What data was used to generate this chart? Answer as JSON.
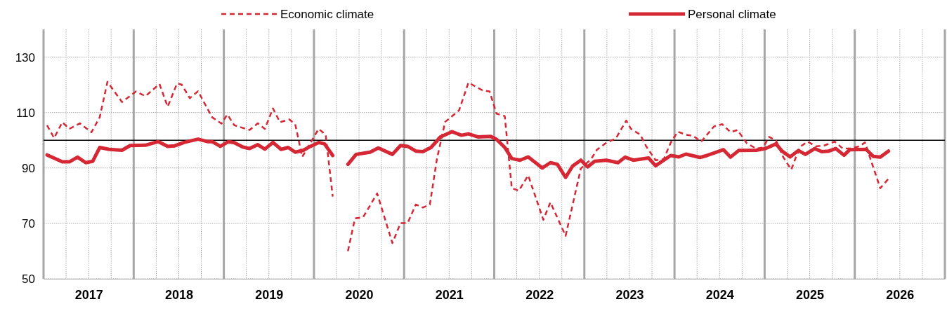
{
  "chart_data": {
    "type": "line",
    "legend": "top",
    "grid": true,
    "marker": "none",
    "xlim": [
      2017,
      2027
    ],
    "ylim": [
      50,
      140
    ],
    "yticks": [
      50,
      70,
      90,
      110,
      130
    ],
    "xticks": [
      {
        "value": 2017,
        "label": null
      },
      {
        "value": 2017.25,
        "label": null
      },
      {
        "value": 2017.5,
        "label": "2017"
      },
      {
        "value": 2017.75,
        "label": null
      },
      {
        "value": 2018,
        "label": null
      },
      {
        "value": 2018.25,
        "label": null
      },
      {
        "value": 2018.5,
        "label": "2018"
      },
      {
        "value": 2018.75,
        "label": null
      },
      {
        "value": 2019,
        "label": null
      },
      {
        "value": 2019.25,
        "label": null
      },
      {
        "value": 2019.5,
        "label": "2019"
      },
      {
        "value": 2019.75,
        "label": null
      },
      {
        "value": 2020,
        "label": null
      },
      {
        "value": 2020.25,
        "label": null
      },
      {
        "value": 2020.5,
        "label": "2020"
      },
      {
        "value": 2020.75,
        "label": null
      },
      {
        "value": 2021,
        "label": null
      },
      {
        "value": 2021.25,
        "label": null
      },
      {
        "value": 2021.5,
        "label": "2021"
      },
      {
        "value": 2021.75,
        "label": null
      },
      {
        "value": 2022,
        "label": null
      },
      {
        "value": 2022.25,
        "label": null
      },
      {
        "value": 2022.5,
        "label": "2022"
      },
      {
        "value": 2022.75,
        "label": null
      },
      {
        "value": 2023,
        "label": null
      },
      {
        "value": 2023.25,
        "label": null
      },
      {
        "value": 2023.5,
        "label": "2023"
      },
      {
        "value": 2023.75,
        "label": null
      },
      {
        "value": 2024,
        "label": null
      },
      {
        "value": 2024.25,
        "label": null
      },
      {
        "value": 2024.5,
        "label": "2024"
      },
      {
        "value": 2024.75,
        "label": null
      },
      {
        "value": 2025,
        "label": null
      },
      {
        "value": 2025.25,
        "label": null
      },
      {
        "value": 2025.5,
        "label": "2025"
      },
      {
        "value": 2025.75,
        "label": null
      },
      {
        "value": 2026,
        "label": null
      },
      {
        "value": 2026.25,
        "label": null
      },
      {
        "value": 2026.5,
        "label": "2026"
      },
      {
        "value": 2026.75,
        "label": null
      },
      {
        "value": 2027,
        "label": null
      }
    ],
    "ref_lines": [
      {
        "axis": "y",
        "value": 100,
        "color": "#000000",
        "line_style": "solid"
      }
    ],
    "series": [
      {
        "name": "Economic climate",
        "color": "#d62734",
        "line_style": "dashed",
        "x": [
          2017.039,
          2017.117,
          2017.208,
          2017.286,
          2017.403,
          2017.532,
          2017.623,
          2017.709,
          2017.87,
          2018.026,
          2018.13,
          2018.286,
          2018.377,
          2018.481,
          2018.532,
          2018.623,
          2018.714,
          2018.87,
          2018.974,
          2019.039,
          2019.117,
          2019.286,
          2019.377,
          2019.455,
          2019.545,
          2019.623,
          2019.727,
          2019.792,
          2019.87,
          2019.961,
          2020.052,
          2020.13,
          2020.208,
          2020.29,
          2020.377,
          2020.455,
          2020.545,
          2020.701,
          2020.87,
          2020.961,
          2021.039,
          2021.13,
          2021.208,
          2021.286,
          2021.364,
          2021.455,
          2021.61,
          2021.714,
          2021.87,
          2021.948,
          2022.026,
          2022.117,
          2022.195,
          2022.273,
          2022.377,
          2022.545,
          2022.623,
          2022.792,
          2022.961,
          2023.075,
          2023.14,
          2023.244,
          2023.348,
          2023.465,
          2023.517,
          2023.621,
          2023.686,
          2023.79,
          2023.881,
          2023.958,
          2024.036,
          2024.127,
          2024.205,
          2024.296,
          2024.439,
          2024.53,
          2024.621,
          2024.699,
          2024.803,
          2024.906,
          2024.984,
          2025.049,
          2025.127,
          2025.205,
          2025.296,
          2025.348,
          2025.4,
          2025.478,
          2025.569,
          2025.66,
          2025.777,
          2025.868,
          2025.945,
          2026.049,
          2026.114,
          2026.179,
          2026.283,
          2026.374
        ],
        "values": [
          105.4,
          100.8,
          106.5,
          104.1,
          106.1,
          102.9,
          108.3,
          121.1,
          113.8,
          117.6,
          115.9,
          120.3,
          112.1,
          120.5,
          120.1,
          115.2,
          117.7,
          108.3,
          106.0,
          109.3,
          105.4,
          103.7,
          106.1,
          104.1,
          111.5,
          106.5,
          107.5,
          105.8,
          94.0,
          99.1,
          104.1,
          102.0,
          79.7,
          null,
          60.0,
          71.8,
          72.2,
          80.8,
          62.9,
          70.1,
          70.1,
          76.8,
          75.7,
          76.8,
          93.2,
          106.6,
          110.8,
          120.8,
          118.0,
          117.6,
          109.6,
          108.7,
          82.7,
          81.8,
          87.3,
          71.3,
          77.6,
          65.5,
          89.8,
          93.2,
          96.6,
          99.1,
          100.6,
          107.1,
          104.1,
          102.0,
          97.8,
          92.8,
          93.2,
          99.1,
          103.1,
          102.0,
          101.6,
          99.5,
          105.0,
          105.8,
          102.9,
          103.7,
          98.9,
          97.0,
          97.4,
          101.2,
          99.9,
          94.0,
          89.4,
          94.0,
          97.8,
          99.5,
          97.8,
          98.1,
          99.5,
          97.0,
          97.0,
          97.8,
          99.2,
          92.8,
          82.7,
          86.1
        ]
      },
      {
        "name": "Personal climate",
        "color": "#d62734",
        "line_style": "solid",
        "x": [
          2017.039,
          2017.208,
          2017.286,
          2017.377,
          2017.468,
          2017.545,
          2017.623,
          2017.727,
          2017.87,
          2017.961,
          2018.13,
          2018.273,
          2018.377,
          2018.455,
          2018.558,
          2018.714,
          2018.818,
          2018.87,
          2018.961,
          2019.052,
          2019.117,
          2019.208,
          2019.286,
          2019.377,
          2019.455,
          2019.545,
          2019.636,
          2019.714,
          2019.792,
          2019.883,
          2019.961,
          2020.052,
          2020.117,
          2020.208,
          2020.29,
          2020.377,
          2020.468,
          2020.623,
          2020.714,
          2020.87,
          2020.961,
          2021.039,
          2021.13,
          2021.208,
          2021.299,
          2021.403,
          2021.532,
          2021.636,
          2021.714,
          2021.818,
          2021.961,
          2022.026,
          2022.117,
          2022.195,
          2022.286,
          2022.377,
          2022.532,
          2022.623,
          2022.701,
          2022.792,
          2022.87,
          2022.961,
          2023.036,
          2023.114,
          2023.244,
          2023.374,
          2023.452,
          2023.543,
          2023.712,
          2023.79,
          2023.958,
          2024.049,
          2024.127,
          2024.283,
          2024.361,
          2024.543,
          2024.621,
          2024.712,
          2024.906,
          2025.01,
          2025.127,
          2025.192,
          2025.283,
          2025.374,
          2025.452,
          2025.556,
          2025.634,
          2025.712,
          2025.79,
          2025.881,
          2025.945,
          2026.127,
          2026.205,
          2026.283,
          2026.374
        ],
        "values": [
          94.7,
          92.2,
          92.2,
          93.9,
          91.9,
          92.4,
          97.4,
          96.7,
          96.4,
          98.1,
          98.2,
          99.5,
          97.8,
          98.0,
          99.2,
          100.4,
          99.5,
          99.5,
          97.8,
          99.5,
          99.1,
          97.6,
          97.0,
          98.4,
          96.8,
          99.2,
          96.7,
          97.4,
          95.7,
          96.4,
          97.8,
          99.2,
          98.7,
          94.5,
          null,
          91.3,
          94.9,
          95.7,
          97.2,
          94.9,
          98.1,
          97.8,
          96.1,
          95.9,
          97.4,
          101.2,
          103.1,
          101.8,
          102.3,
          101.2,
          101.4,
          100.3,
          97.4,
          93.4,
          92.8,
          94.0,
          90.0,
          91.9,
          91.3,
          86.6,
          90.7,
          92.8,
          90.4,
          92.4,
          92.8,
          91.9,
          93.9,
          92.8,
          93.6,
          90.8,
          94.5,
          94.0,
          95.0,
          93.8,
          94.5,
          96.6,
          93.9,
          96.3,
          96.4,
          97.0,
          98.7,
          96.1,
          94.0,
          96.3,
          94.9,
          97.0,
          95.9,
          96.1,
          97.0,
          94.6,
          96.6,
          96.7,
          94.2,
          93.9,
          96.1
        ]
      }
    ]
  }
}
